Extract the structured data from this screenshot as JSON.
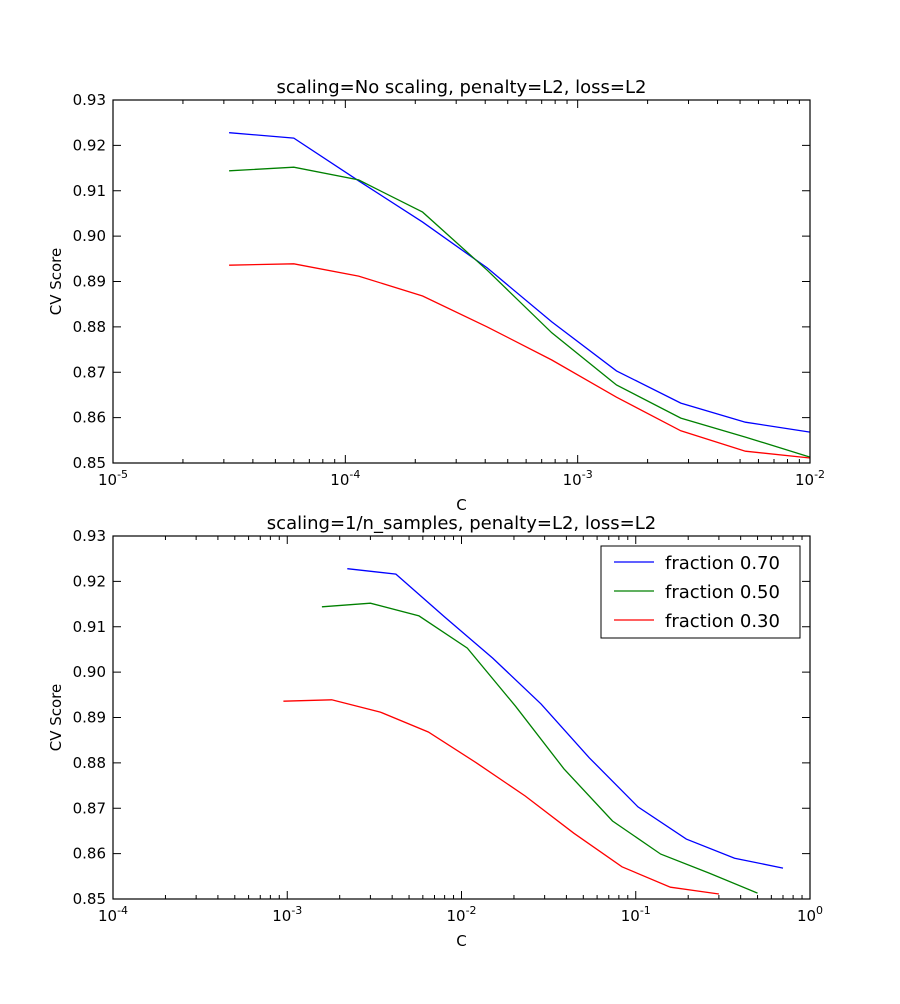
{
  "chart_data": [
    {
      "type": "line",
      "title": "scaling=No scaling, penalty=L2, loss=L2",
      "xlabel": "C",
      "ylabel": "CV Score",
      "xscale": "log",
      "xlim": [
        1e-05,
        0.01
      ],
      "ylim": [
        0.85,
        0.93
      ],
      "grid": false,
      "legend": null,
      "xticks": [
        {
          "base": "10",
          "exp": "-5",
          "value": 1e-05
        },
        {
          "base": "10",
          "exp": "-4",
          "value": 0.0001
        },
        {
          "base": "10",
          "exp": "-3",
          "value": 0.001
        },
        {
          "base": "10",
          "exp": "-2",
          "value": 0.01
        }
      ],
      "yticks": [
        "0.85",
        "0.86",
        "0.87",
        "0.88",
        "0.89",
        "0.90",
        "0.91",
        "0.92",
        "0.93"
      ],
      "series": [
        {
          "name": "fraction 0.70",
          "color": "#0000ff",
          "x": [
            3.16e-05,
            6e-05,
            0.000114,
            0.000215,
            0.000408,
            0.000774,
            0.00147,
            0.00278,
            0.00527,
            0.01
          ],
          "y": [
            0.9228,
            0.9216,
            0.9122,
            0.9031,
            0.893,
            0.8811,
            0.8703,
            0.8632,
            0.859,
            0.8568
          ]
        },
        {
          "name": "fraction 0.50",
          "color": "#008000",
          "x": [
            3.16e-05,
            6e-05,
            0.000114,
            0.000215,
            0.000408,
            0.000774,
            0.00147,
            0.00278,
            0.00527,
            0.01
          ],
          "y": [
            0.9144,
            0.9152,
            0.9124,
            0.9053,
            0.8925,
            0.8787,
            0.8672,
            0.8599,
            0.8557,
            0.8513
          ]
        },
        {
          "name": "fraction 0.30",
          "color": "#ff0000",
          "x": [
            3.16e-05,
            6e-05,
            0.000114,
            0.000215,
            0.000408,
            0.000774,
            0.00147,
            0.00278,
            0.00527,
            0.01
          ],
          "y": [
            0.8936,
            0.8939,
            0.8912,
            0.8868,
            0.88,
            0.8727,
            0.8645,
            0.8571,
            0.8526,
            0.8511
          ]
        }
      ]
    },
    {
      "type": "line",
      "title": "scaling=1/n_samples, penalty=L2, loss=L2",
      "xlabel": "C",
      "ylabel": "CV Score",
      "xscale": "log",
      "xlim": [
        0.0001,
        1
      ],
      "ylim": [
        0.85,
        0.93
      ],
      "grid": false,
      "legend": "top-right",
      "xticks": [
        {
          "base": "10",
          "exp": "-4",
          "value": 0.0001
        },
        {
          "base": "10",
          "exp": "-3",
          "value": 0.001
        },
        {
          "base": "10",
          "exp": "-2",
          "value": 0.01
        },
        {
          "base": "10",
          "exp": "-1",
          "value": 0.1
        },
        {
          "base": "10",
          "exp": "0",
          "value": 1
        }
      ],
      "yticks": [
        "0.85",
        "0.86",
        "0.87",
        "0.88",
        "0.89",
        "0.90",
        "0.91",
        "0.92",
        "0.93"
      ],
      "series": [
        {
          "name": "fraction 0.70",
          "color": "#0000ff",
          "x": [
            0.00221,
            0.0042,
            0.00798,
            0.0151,
            0.0286,
            0.0542,
            0.103,
            0.195,
            0.369,
            0.7
          ],
          "y": [
            0.9228,
            0.9216,
            0.9122,
            0.9031,
            0.893,
            0.8811,
            0.8703,
            0.8632,
            0.859,
            0.8568
          ]
        },
        {
          "name": "fraction 0.50",
          "color": "#008000",
          "x": [
            0.00158,
            0.003,
            0.0057,
            0.0108,
            0.0204,
            0.0387,
            0.0735,
            0.139,
            0.264,
            0.5
          ],
          "y": [
            0.9144,
            0.9152,
            0.9124,
            0.9053,
            0.8925,
            0.8787,
            0.8672,
            0.8599,
            0.8557,
            0.8513
          ]
        },
        {
          "name": "fraction 0.30",
          "color": "#ff0000",
          "x": [
            0.00095,
            0.0018,
            0.00342,
            0.00645,
            0.0122,
            0.0232,
            0.0441,
            0.0834,
            0.158,
            0.3
          ],
          "y": [
            0.8936,
            0.8939,
            0.8912,
            0.8868,
            0.88,
            0.8727,
            0.8645,
            0.8571,
            0.8526,
            0.8511
          ]
        }
      ]
    }
  ]
}
